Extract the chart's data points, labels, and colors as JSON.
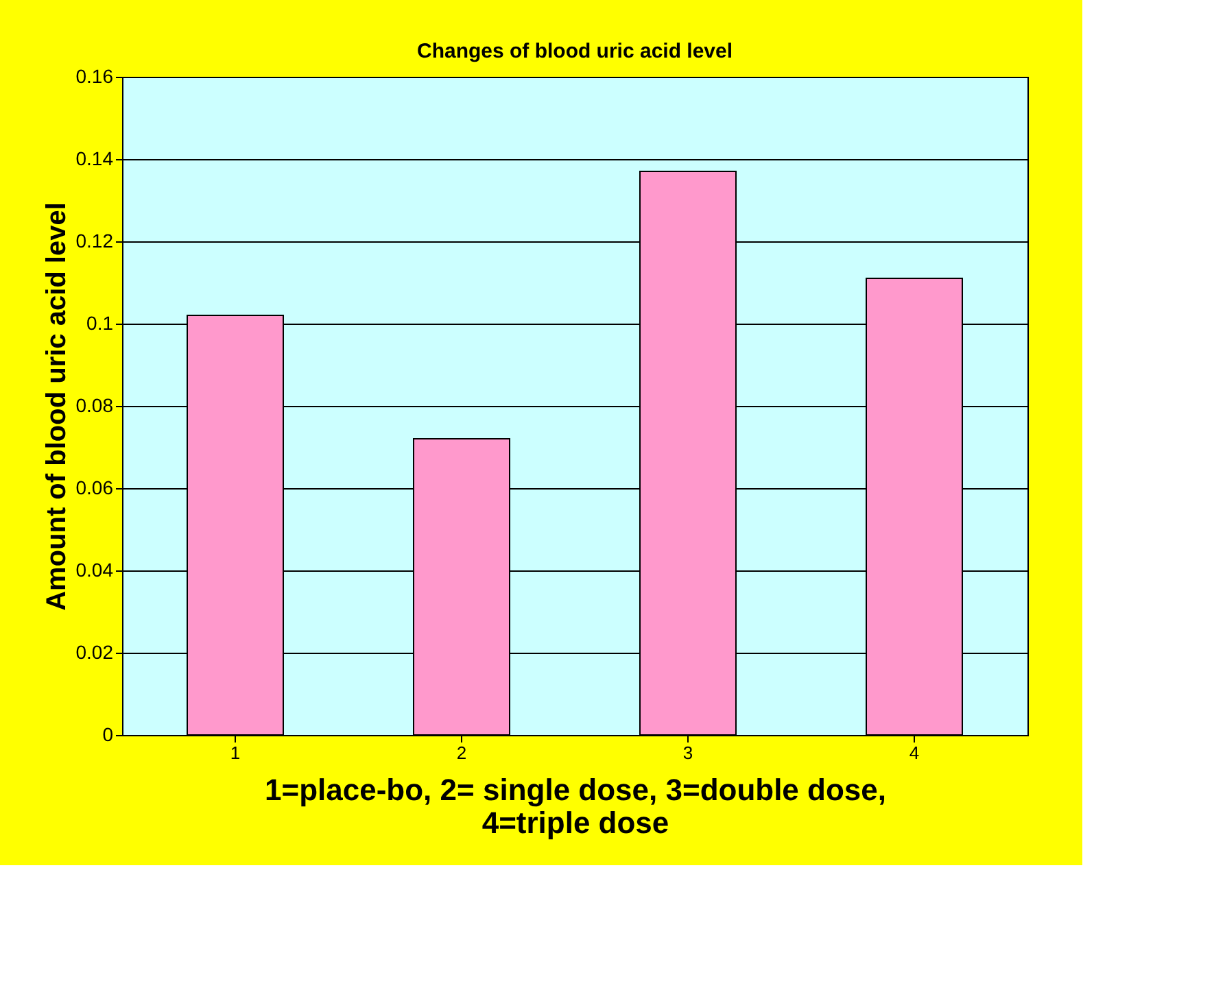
{
  "chart_data": {
    "type": "bar",
    "title": "Changes of blood uric acid level",
    "xlabel": "1=place-bo, 2= single dose, 3=double dose, 4=triple dose",
    "ylabel": "Amount of blood uric acid level",
    "categories": [
      "1",
      "2",
      "3",
      "4"
    ],
    "values": [
      0.102,
      0.072,
      0.137,
      0.111
    ],
    "color": "#ff99cc",
    "ylim": [
      0,
      0.16
    ],
    "yticks": [
      0,
      0.02,
      0.04,
      0.06,
      0.08,
      0.1,
      0.12,
      0.14,
      0.16
    ],
    "grid": "y"
  }
}
